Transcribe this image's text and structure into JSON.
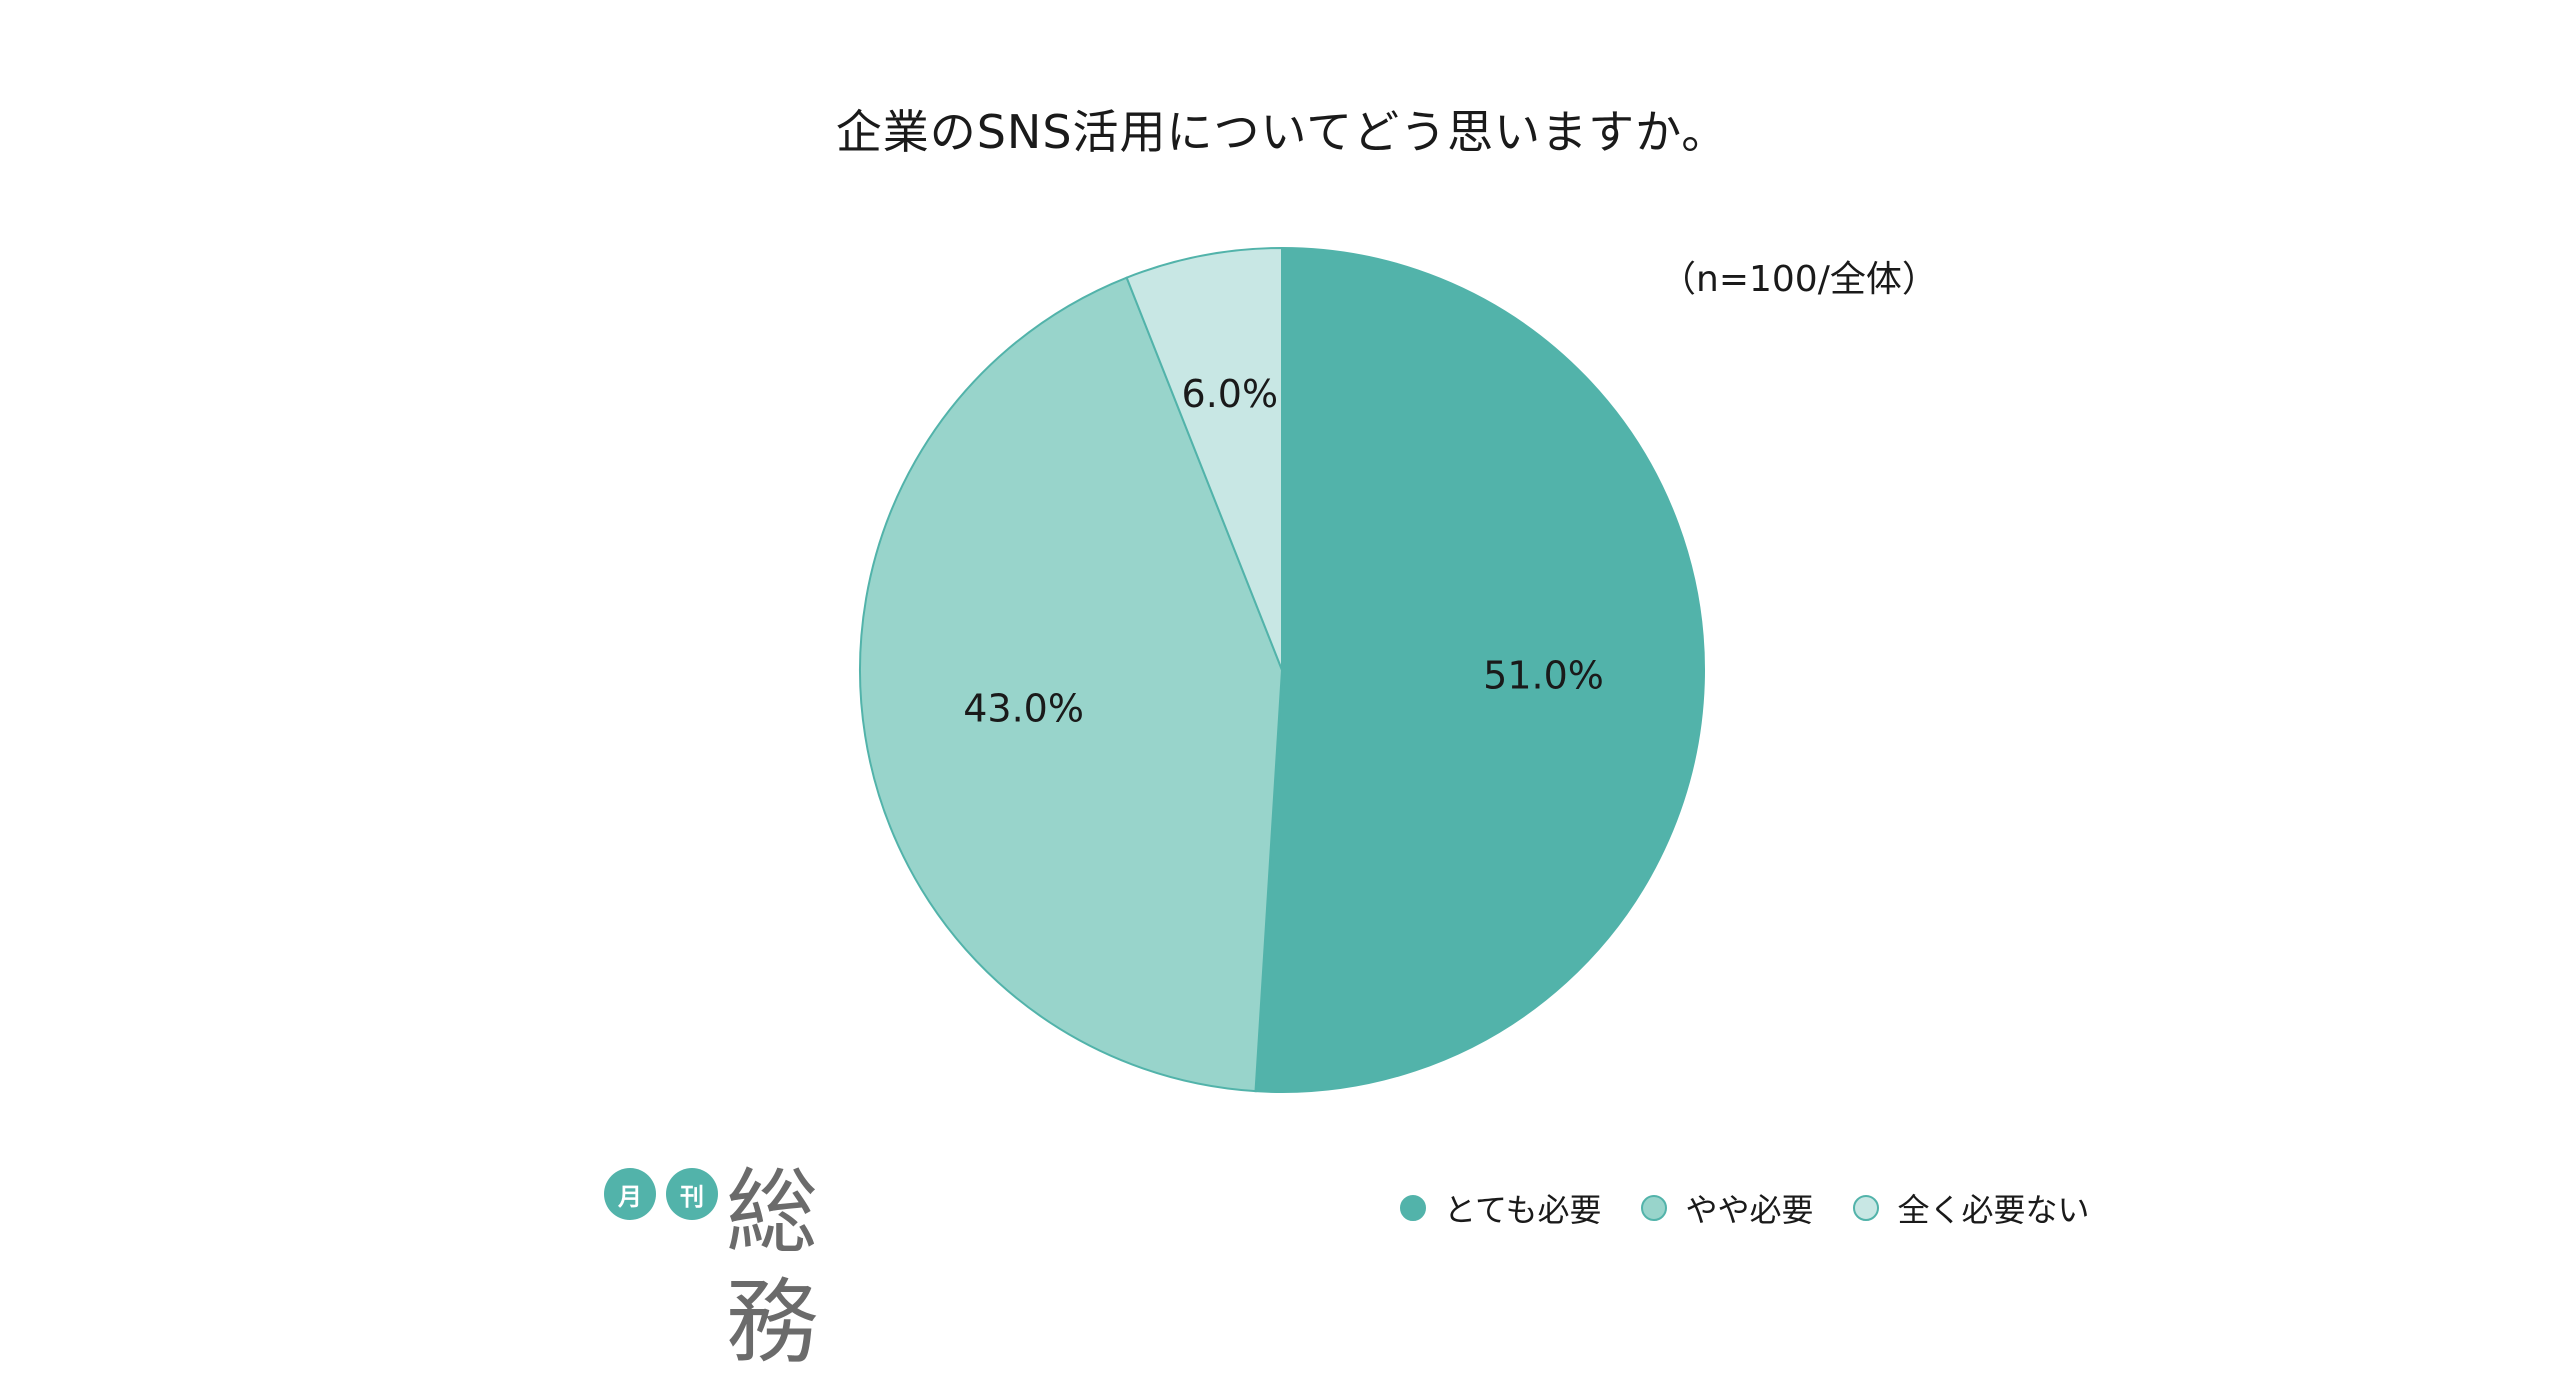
{
  "chart_data": {
    "type": "pie",
    "title": "企業のSNS活用についてどう思いますか。",
    "note": "（n=100/全体）",
    "categories": [
      "とても必要",
      "やや必要",
      "全く必要ない"
    ],
    "values": [
      51.0,
      43.0,
      6.0
    ],
    "labels": [
      "51.0%",
      "43.0%",
      "6.0%"
    ],
    "colors": [
      "#52b3aa",
      "#98d4cb",
      "#c8e7e4"
    ],
    "legend_position": "bottom-right"
  },
  "logo": {
    "circle1": "月",
    "circle2": "刊",
    "main": "総務"
  }
}
